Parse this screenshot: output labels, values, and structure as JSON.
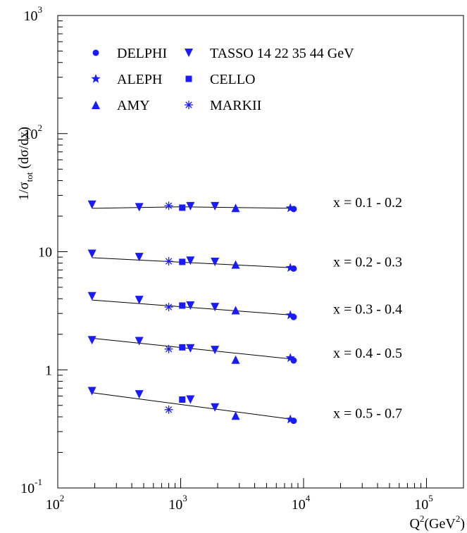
{
  "chart_data": {
    "type": "scatter",
    "x_scale": "log",
    "y_scale": "log",
    "xlim": [
      100,
      200000
    ],
    "ylim": [
      0.1,
      1000
    ],
    "xlabel_base": "Q",
    "xlabel_sup": "2",
    "xlabel_unit_open": "(GeV",
    "xlabel_unit_sup": "2",
    "xlabel_unit_close": ")",
    "ylabel_prefix": "1/σ",
    "ylabel_sub": "tot",
    "ylabel_suffix": " (dσ/dx)",
    "x_ticks": [
      {
        "value": 100,
        "base": "10",
        "exp": "2"
      },
      {
        "value": 1000,
        "base": "10",
        "exp": "3"
      },
      {
        "value": 10000,
        "base": "10",
        "exp": "4"
      },
      {
        "value": 100000,
        "base": "10",
        "exp": "5"
      }
    ],
    "y_ticks": [
      {
        "value": 0.1,
        "base": "10",
        "exp": "-1"
      },
      {
        "value": 1,
        "base": "1",
        "exp": ""
      },
      {
        "value": 10,
        "base": "10",
        "exp": ""
      },
      {
        "value": 100,
        "base": "10",
        "exp": "2"
      },
      {
        "value": 1000,
        "base": "10",
        "exp": "3"
      }
    ],
    "series_color": "#1a1aff",
    "legend": [
      {
        "name": "DELPHI",
        "marker": "circle"
      },
      {
        "name": "TASSO 14 22 35 44 GeV",
        "marker": "triangle-down"
      },
      {
        "name": "ALEPH",
        "marker": "star"
      },
      {
        "name": "CELLO",
        "marker": "square"
      },
      {
        "name": "AMY",
        "marker": "triangle-up"
      },
      {
        "name": "MARKII",
        "marker": "asterisk"
      }
    ],
    "bins": [
      {
        "label": "x = 0.1 - 0.2",
        "fit": [
          [
            190,
            23.3
          ],
          [
            1000,
            24.0
          ],
          [
            8300,
            23.3
          ]
        ],
        "points": [
          {
            "series": "TASSO",
            "x": 190,
            "y": 25.0
          },
          {
            "series": "TASSO",
            "x": 460,
            "y": 23.8
          },
          {
            "series": "MARKII",
            "x": 800,
            "y": 24.5
          },
          {
            "series": "CELLO",
            "x": 1030,
            "y": 23.6
          },
          {
            "series": "TASSO",
            "x": 1200,
            "y": 24.3
          },
          {
            "series": "TASSO",
            "x": 1900,
            "y": 24.3
          },
          {
            "series": "AMY",
            "x": 2800,
            "y": 23.5
          },
          {
            "series": "ALEPH",
            "x": 7800,
            "y": 23.4
          },
          {
            "series": "DELPHI",
            "x": 8300,
            "y": 23.0
          }
        ]
      },
      {
        "label": "x = 0.2 - 0.3",
        "fit": [
          [
            190,
            8.9
          ],
          [
            8300,
            7.3
          ]
        ],
        "points": [
          {
            "series": "TASSO",
            "x": 190,
            "y": 9.6
          },
          {
            "series": "TASSO",
            "x": 460,
            "y": 9.0
          },
          {
            "series": "MARKII",
            "x": 800,
            "y": 8.3
          },
          {
            "series": "CELLO",
            "x": 1030,
            "y": 8.2
          },
          {
            "series": "TASSO",
            "x": 1200,
            "y": 8.4
          },
          {
            "series": "TASSO",
            "x": 1900,
            "y": 8.2
          },
          {
            "series": "AMY",
            "x": 2800,
            "y": 7.8
          },
          {
            "series": "ALEPH",
            "x": 7800,
            "y": 7.3
          },
          {
            "series": "DELPHI",
            "x": 8300,
            "y": 7.2
          }
        ]
      },
      {
        "label": "x = 0.3 - 0.4",
        "fit": [
          [
            190,
            3.9
          ],
          [
            8300,
            2.9
          ]
        ],
        "points": [
          {
            "series": "TASSO",
            "x": 190,
            "y": 4.2
          },
          {
            "series": "TASSO",
            "x": 460,
            "y": 3.9
          },
          {
            "series": "MARKII",
            "x": 800,
            "y": 3.4
          },
          {
            "series": "CELLO",
            "x": 1030,
            "y": 3.5
          },
          {
            "series": "TASSO",
            "x": 1200,
            "y": 3.5
          },
          {
            "series": "TASSO",
            "x": 1900,
            "y": 3.4
          },
          {
            "series": "AMY",
            "x": 2800,
            "y": 3.2
          },
          {
            "series": "ALEPH",
            "x": 7800,
            "y": 2.9
          },
          {
            "series": "DELPHI",
            "x": 8300,
            "y": 2.8
          }
        ]
      },
      {
        "label": "x = 0.4 - 0.5",
        "fit": [
          [
            190,
            1.85
          ],
          [
            8300,
            1.23
          ]
        ],
        "points": [
          {
            "series": "TASSO",
            "x": 190,
            "y": 1.78
          },
          {
            "series": "TASSO",
            "x": 460,
            "y": 1.75
          },
          {
            "series": "MARKII",
            "x": 800,
            "y": 1.5
          },
          {
            "series": "CELLO",
            "x": 1030,
            "y": 1.55
          },
          {
            "series": "TASSO",
            "x": 1200,
            "y": 1.52
          },
          {
            "series": "TASSO",
            "x": 1900,
            "y": 1.47
          },
          {
            "series": "AMY",
            "x": 2800,
            "y": 1.22
          },
          {
            "series": "ALEPH",
            "x": 7800,
            "y": 1.26
          },
          {
            "series": "DELPHI",
            "x": 8300,
            "y": 1.2
          }
        ]
      },
      {
        "label": "x = 0.5 - 0.7",
        "fit": [
          [
            190,
            0.64
          ],
          [
            8300,
            0.38
          ]
        ],
        "points": [
          {
            "series": "TASSO",
            "x": 190,
            "y": 0.66
          },
          {
            "series": "TASSO",
            "x": 460,
            "y": 0.62
          },
          {
            "series": "MARKII",
            "x": 800,
            "y": 0.46
          },
          {
            "series": "CELLO",
            "x": 1030,
            "y": 0.56
          },
          {
            "series": "TASSO",
            "x": 1200,
            "y": 0.56
          },
          {
            "series": "TASSO",
            "x": 1900,
            "y": 0.48
          },
          {
            "series": "AMY",
            "x": 2800,
            "y": 0.41
          },
          {
            "series": "ALEPH",
            "x": 7800,
            "y": 0.38
          },
          {
            "series": "DELPHI",
            "x": 8300,
            "y": 0.37
          }
        ]
      }
    ]
  }
}
